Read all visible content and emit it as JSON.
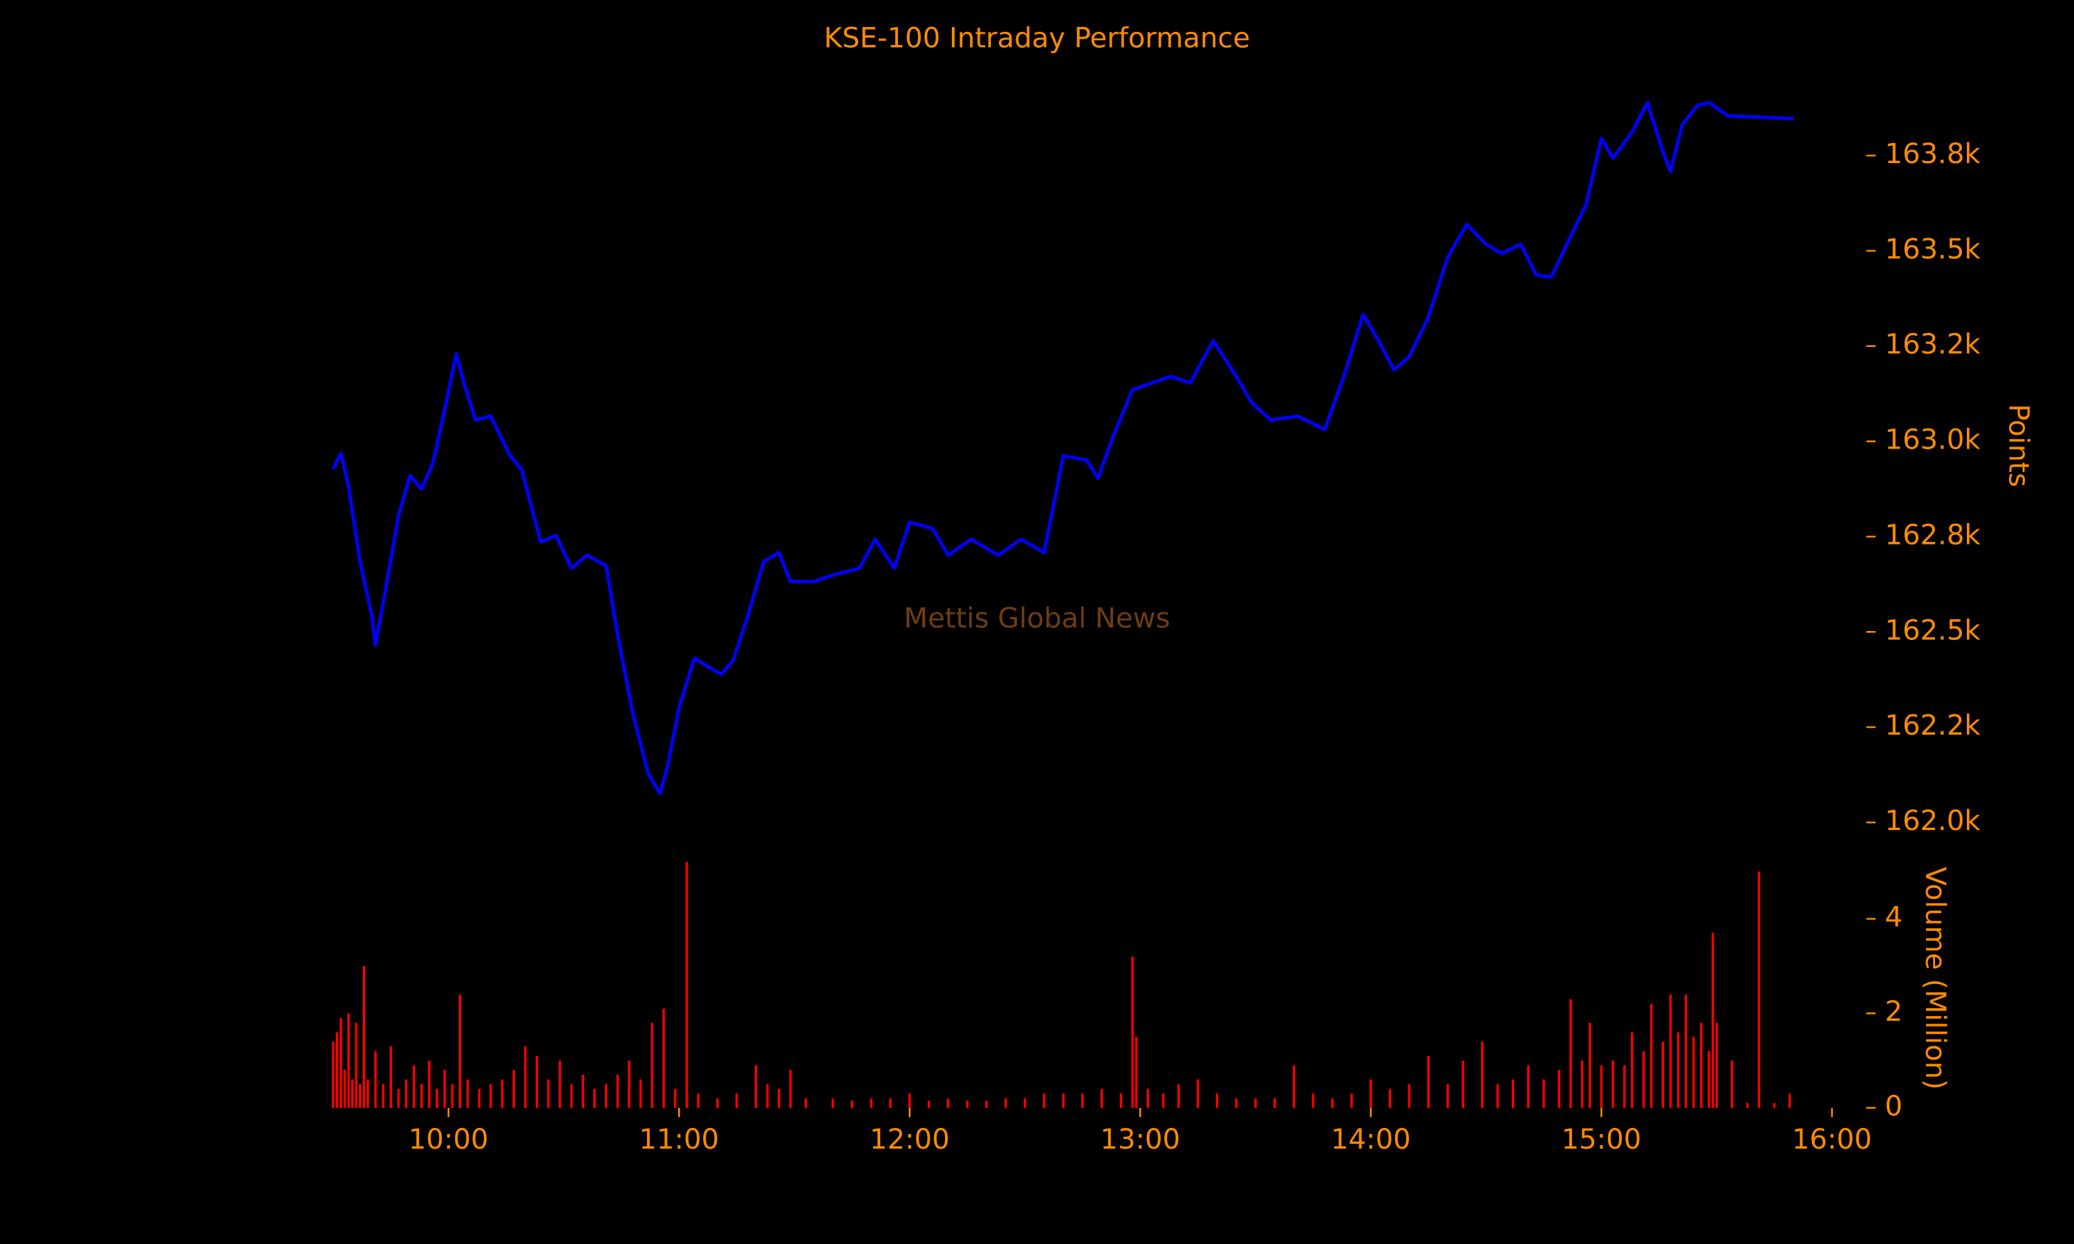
{
  "chart_data": [
    {
      "type": "line",
      "title": "KSE-100 Intraday Performance",
      "annotations": [
        "Mettis Global News"
      ],
      "ylabel": "Points",
      "x": [
        "09:30",
        "09:32",
        "09:34",
        "09:37",
        "09:40",
        "09:41",
        "09:44",
        "09:47",
        "09:50",
        "09:53",
        "09:56",
        "09:59",
        "10:02",
        "10:04",
        "10:07",
        "10:11",
        "10:16",
        "10:19",
        "10:24",
        "10:28",
        "10:32",
        "10:36",
        "10:41",
        "10:44",
        "10:48",
        "10:52",
        "10:55",
        "10:57",
        "11:00",
        "11:04",
        "11:08",
        "11:11",
        "11:14",
        "11:18",
        "11:22",
        "11:26",
        "11:29",
        "11:35",
        "11:40",
        "11:47",
        "11:51",
        "11:56",
        "12:00",
        "12:06",
        "12:10",
        "12:16",
        "12:23",
        "12:29",
        "12:35",
        "12:40",
        "12:46",
        "12:49",
        "12:53",
        "12:58",
        "13:03",
        "13:08",
        "13:13",
        "13:19",
        "13:25",
        "13:29",
        "13:34",
        "13:41",
        "13:48",
        "13:53",
        "13:58",
        "14:02",
        "14:06",
        "14:10",
        "14:15",
        "14:20",
        "14:25",
        "14:30",
        "14:34",
        "14:39",
        "14:43",
        "14:47",
        "14:51",
        "14:56",
        "15:00",
        "15:03",
        "15:08",
        "15:12",
        "15:16",
        "15:18",
        "15:21",
        "15:25",
        "15:28",
        "15:33",
        "15:50"
      ],
      "values": [
        162927,
        162969,
        162882,
        162684,
        162545,
        162465,
        162632,
        162805,
        162910,
        162875,
        162944,
        163083,
        163229,
        163153,
        163056,
        163066,
        162962,
        162927,
        162736,
        162753,
        162667,
        162701,
        162674,
        162493,
        162285,
        162128,
        162076,
        162146,
        162302,
        162431,
        162406,
        162389,
        162424,
        162545,
        162684,
        162708,
        162632,
        162632,
        162649,
        162667,
        162743,
        162667,
        162788,
        162771,
        162701,
        162743,
        162701,
        162743,
        162708,
        162962,
        162951,
        162903,
        163014,
        163135,
        163153,
        163170,
        163153,
        163264,
        163170,
        163101,
        163056,
        163066,
        163031,
        163170,
        163333,
        163264,
        163188,
        163222,
        163326,
        163483,
        163569,
        163517,
        163493,
        163517,
        163437,
        163431,
        163517,
        163621,
        163795,
        163743,
        163812,
        163889,
        163760,
        163708,
        163830,
        163882,
        163889,
        163854,
        163847
      ],
      "color": "#0000ff",
      "xlim": [
        "09:29",
        "16:00"
      ],
      "ylim": [
        161990,
        163950
      ],
      "yticks": [
        {
          "value": 162000,
          "label": "162.0k"
        },
        {
          "value": 162250,
          "label": "162.2k"
        },
        {
          "value": 162500,
          "label": "162.5k"
        },
        {
          "value": 162750,
          "label": "162.8k"
        },
        {
          "value": 163000,
          "label": "163.0k"
        },
        {
          "value": 163250,
          "label": "163.2k"
        },
        {
          "value": 163500,
          "label": "163.5k"
        },
        {
          "value": 163750,
          "label": "163.8k"
        }
      ]
    },
    {
      "type": "bar",
      "ylabel": "Volume (Million)",
      "x": [
        "09:30",
        "09:31",
        "09:32",
        "09:33",
        "09:34",
        "09:35",
        "09:36",
        "09:37",
        "09:38",
        "09:39",
        "09:41",
        "09:43",
        "09:45",
        "09:47",
        "09:49",
        "09:51",
        "09:53",
        "09:55",
        "09:57",
        "09:59",
        "10:01",
        "10:03",
        "10:05",
        "10:08",
        "10:11",
        "10:14",
        "10:17",
        "10:20",
        "10:23",
        "10:26",
        "10:29",
        "10:32",
        "10:35",
        "10:38",
        "10:41",
        "10:44",
        "10:47",
        "10:50",
        "10:53",
        "10:56",
        "10:59",
        "11:02",
        "11:05",
        "11:10",
        "11:15",
        "11:20",
        "11:23",
        "11:26",
        "11:29",
        "11:33",
        "11:40",
        "11:45",
        "11:50",
        "11:55",
        "12:00",
        "12:05",
        "12:10",
        "12:15",
        "12:20",
        "12:25",
        "12:30",
        "12:35",
        "12:40",
        "12:45",
        "12:50",
        "12:55",
        "12:58",
        "12:59",
        "13:02",
        "13:06",
        "13:10",
        "13:15",
        "13:20",
        "13:25",
        "13:30",
        "13:35",
        "13:40",
        "13:45",
        "13:50",
        "13:55",
        "14:00",
        "14:05",
        "14:10",
        "14:15",
        "14:20",
        "14:24",
        "14:29",
        "14:33",
        "14:37",
        "14:41",
        "14:45",
        "14:49",
        "14:52",
        "14:55",
        "14:57",
        "15:00",
        "15:03",
        "15:06",
        "15:08",
        "15:11",
        "15:13",
        "15:16",
        "15:18",
        "15:20",
        "15:22",
        "15:24",
        "15:26",
        "15:28",
        "15:29",
        "15:30",
        "15:34",
        "15:38",
        "15:41",
        "15:45",
        "15:49"
      ],
      "values": [
        1.4,
        1.6,
        1.9,
        0.8,
        2.0,
        0.6,
        1.8,
        0.5,
        3.0,
        0.6,
        1.2,
        0.5,
        1.3,
        0.4,
        0.6,
        0.9,
        0.5,
        1.0,
        0.4,
        0.8,
        0.5,
        2.4,
        0.6,
        0.4,
        0.5,
        0.6,
        0.8,
        1.3,
        1.1,
        0.6,
        1.0,
        0.5,
        0.7,
        0.4,
        0.5,
        0.7,
        1.0,
        0.6,
        1.8,
        2.1,
        0.4,
        5.2,
        0.3,
        0.2,
        0.3,
        0.9,
        0.5,
        0.4,
        0.8,
        0.2,
        0.2,
        0.15,
        0.2,
        0.2,
        0.3,
        0.15,
        0.2,
        0.15,
        0.15,
        0.2,
        0.2,
        0.3,
        0.3,
        0.3,
        0.4,
        0.3,
        3.2,
        1.5,
        0.4,
        0.3,
        0.5,
        0.6,
        0.3,
        0.2,
        0.2,
        0.2,
        0.9,
        0.3,
        0.2,
        0.3,
        0.6,
        0.4,
        0.5,
        1.1,
        0.5,
        1.0,
        1.4,
        0.5,
        0.6,
        0.9,
        0.6,
        0.8,
        2.3,
        1.0,
        1.8,
        0.9,
        1.0,
        0.9,
        1.6,
        1.2,
        2.2,
        1.4,
        2.4,
        1.6,
        2.4,
        1.5,
        1.8,
        1.2,
        3.7,
        1.8,
        1.0,
        0.1,
        5.0,
        0.1,
        0.3
      ],
      "color": "#ff0000",
      "xlim": [
        "09:29",
        "16:00"
      ],
      "ylim": [
        0,
        5.26
      ],
      "yticks": [
        0,
        2,
        4
      ],
      "xticks": [
        "10:00",
        "11:00",
        "12:00",
        "13:00",
        "14:00",
        "15:00",
        "16:00"
      ]
    }
  ]
}
